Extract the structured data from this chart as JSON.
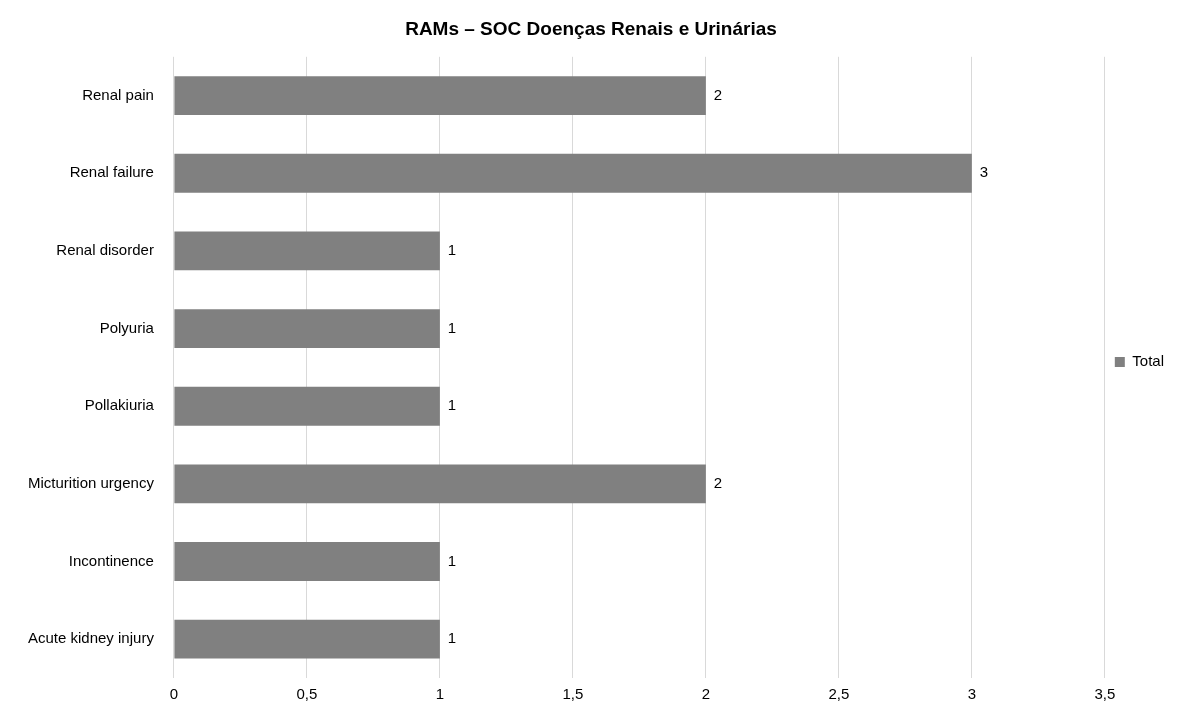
{
  "chart_data": {
    "type": "bar",
    "orientation": "horizontal",
    "title": "RAMs – SOC Doenças Renais e Urinárias",
    "categories": [
      "Renal pain",
      "Renal failure",
      "Renal disorder",
      "Polyuria",
      "Pollakiuria",
      "Micturition urgency",
      "Incontinence",
      "Acute kidney injury"
    ],
    "series": [
      {
        "name": "Total",
        "color": "#808080",
        "values": [
          2,
          3,
          1,
          1,
          1,
          2,
          1,
          1
        ]
      }
    ],
    "xlim": [
      0,
      3.5
    ],
    "xticks": [
      0,
      {
        "value": 0.5,
        "label": "0,5"
      },
      1,
      {
        "value": 1.5,
        "label": "1,5"
      },
      2,
      {
        "value": 2.5,
        "label": "2,5"
      },
      3,
      {
        "value": 3.5,
        "label": "3,5"
      }
    ],
    "grid": "x",
    "legend": "right",
    "data_labels": true
  }
}
